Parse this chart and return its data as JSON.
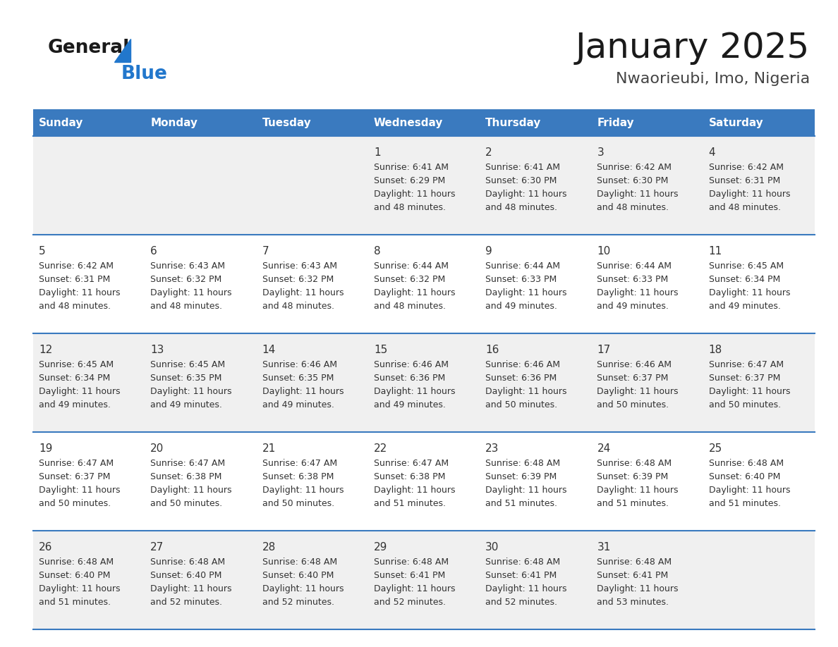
{
  "title": "January 2025",
  "subtitle": "Nwaorieubi, Imo, Nigeria",
  "days_of_week": [
    "Sunday",
    "Monday",
    "Tuesday",
    "Wednesday",
    "Thursday",
    "Friday",
    "Saturday"
  ],
  "header_bg": "#3a7abf",
  "header_text_color": "#ffffff",
  "row_bg_odd": "#f0f0f0",
  "row_bg_even": "#ffffff",
  "separator_color": "#3a7abf",
  "text_color": "#333333",
  "day_number_color": "#333333",
  "calendar_data": [
    [
      null,
      null,
      null,
      {
        "day": 1,
        "sunrise": "6:41 AM",
        "sunset": "6:29 PM",
        "daylight_line1": "Daylight: 11 hours",
        "daylight_line2": "and 48 minutes."
      },
      {
        "day": 2,
        "sunrise": "6:41 AM",
        "sunset": "6:30 PM",
        "daylight_line1": "Daylight: 11 hours",
        "daylight_line2": "and 48 minutes."
      },
      {
        "day": 3,
        "sunrise": "6:42 AM",
        "sunset": "6:30 PM",
        "daylight_line1": "Daylight: 11 hours",
        "daylight_line2": "and 48 minutes."
      },
      {
        "day": 4,
        "sunrise": "6:42 AM",
        "sunset": "6:31 PM",
        "daylight_line1": "Daylight: 11 hours",
        "daylight_line2": "and 48 minutes."
      }
    ],
    [
      {
        "day": 5,
        "sunrise": "6:42 AM",
        "sunset": "6:31 PM",
        "daylight_line1": "Daylight: 11 hours",
        "daylight_line2": "and 48 minutes."
      },
      {
        "day": 6,
        "sunrise": "6:43 AM",
        "sunset": "6:32 PM",
        "daylight_line1": "Daylight: 11 hours",
        "daylight_line2": "and 48 minutes."
      },
      {
        "day": 7,
        "sunrise": "6:43 AM",
        "sunset": "6:32 PM",
        "daylight_line1": "Daylight: 11 hours",
        "daylight_line2": "and 48 minutes."
      },
      {
        "day": 8,
        "sunrise": "6:44 AM",
        "sunset": "6:32 PM",
        "daylight_line1": "Daylight: 11 hours",
        "daylight_line2": "and 48 minutes."
      },
      {
        "day": 9,
        "sunrise": "6:44 AM",
        "sunset": "6:33 PM",
        "daylight_line1": "Daylight: 11 hours",
        "daylight_line2": "and 49 minutes."
      },
      {
        "day": 10,
        "sunrise": "6:44 AM",
        "sunset": "6:33 PM",
        "daylight_line1": "Daylight: 11 hours",
        "daylight_line2": "and 49 minutes."
      },
      {
        "day": 11,
        "sunrise": "6:45 AM",
        "sunset": "6:34 PM",
        "daylight_line1": "Daylight: 11 hours",
        "daylight_line2": "and 49 minutes."
      }
    ],
    [
      {
        "day": 12,
        "sunrise": "6:45 AM",
        "sunset": "6:34 PM",
        "daylight_line1": "Daylight: 11 hours",
        "daylight_line2": "and 49 minutes."
      },
      {
        "day": 13,
        "sunrise": "6:45 AM",
        "sunset": "6:35 PM",
        "daylight_line1": "Daylight: 11 hours",
        "daylight_line2": "and 49 minutes."
      },
      {
        "day": 14,
        "sunrise": "6:46 AM",
        "sunset": "6:35 PM",
        "daylight_line1": "Daylight: 11 hours",
        "daylight_line2": "and 49 minutes."
      },
      {
        "day": 15,
        "sunrise": "6:46 AM",
        "sunset": "6:36 PM",
        "daylight_line1": "Daylight: 11 hours",
        "daylight_line2": "and 49 minutes."
      },
      {
        "day": 16,
        "sunrise": "6:46 AM",
        "sunset": "6:36 PM",
        "daylight_line1": "Daylight: 11 hours",
        "daylight_line2": "and 50 minutes."
      },
      {
        "day": 17,
        "sunrise": "6:46 AM",
        "sunset": "6:37 PM",
        "daylight_line1": "Daylight: 11 hours",
        "daylight_line2": "and 50 minutes."
      },
      {
        "day": 18,
        "sunrise": "6:47 AM",
        "sunset": "6:37 PM",
        "daylight_line1": "Daylight: 11 hours",
        "daylight_line2": "and 50 minutes."
      }
    ],
    [
      {
        "day": 19,
        "sunrise": "6:47 AM",
        "sunset": "6:37 PM",
        "daylight_line1": "Daylight: 11 hours",
        "daylight_line2": "and 50 minutes."
      },
      {
        "day": 20,
        "sunrise": "6:47 AM",
        "sunset": "6:38 PM",
        "daylight_line1": "Daylight: 11 hours",
        "daylight_line2": "and 50 minutes."
      },
      {
        "day": 21,
        "sunrise": "6:47 AM",
        "sunset": "6:38 PM",
        "daylight_line1": "Daylight: 11 hours",
        "daylight_line2": "and 50 minutes."
      },
      {
        "day": 22,
        "sunrise": "6:47 AM",
        "sunset": "6:38 PM",
        "daylight_line1": "Daylight: 11 hours",
        "daylight_line2": "and 51 minutes."
      },
      {
        "day": 23,
        "sunrise": "6:48 AM",
        "sunset": "6:39 PM",
        "daylight_line1": "Daylight: 11 hours",
        "daylight_line2": "and 51 minutes."
      },
      {
        "day": 24,
        "sunrise": "6:48 AM",
        "sunset": "6:39 PM",
        "daylight_line1": "Daylight: 11 hours",
        "daylight_line2": "and 51 minutes."
      },
      {
        "day": 25,
        "sunrise": "6:48 AM",
        "sunset": "6:40 PM",
        "daylight_line1": "Daylight: 11 hours",
        "daylight_line2": "and 51 minutes."
      }
    ],
    [
      {
        "day": 26,
        "sunrise": "6:48 AM",
        "sunset": "6:40 PM",
        "daylight_line1": "Daylight: 11 hours",
        "daylight_line2": "and 51 minutes."
      },
      {
        "day": 27,
        "sunrise": "6:48 AM",
        "sunset": "6:40 PM",
        "daylight_line1": "Daylight: 11 hours",
        "daylight_line2": "and 52 minutes."
      },
      {
        "day": 28,
        "sunrise": "6:48 AM",
        "sunset": "6:40 PM",
        "daylight_line1": "Daylight: 11 hours",
        "daylight_line2": "and 52 minutes."
      },
      {
        "day": 29,
        "sunrise": "6:48 AM",
        "sunset": "6:41 PM",
        "daylight_line1": "Daylight: 11 hours",
        "daylight_line2": "and 52 minutes."
      },
      {
        "day": 30,
        "sunrise": "6:48 AM",
        "sunset": "6:41 PM",
        "daylight_line1": "Daylight: 11 hours",
        "daylight_line2": "and 52 minutes."
      },
      {
        "day": 31,
        "sunrise": "6:48 AM",
        "sunset": "6:41 PM",
        "daylight_line1": "Daylight: 11 hours",
        "daylight_line2": "and 53 minutes."
      },
      null
    ]
  ],
  "logo_color_general": "#1a1a1a",
  "logo_color_blue": "#2277cc"
}
